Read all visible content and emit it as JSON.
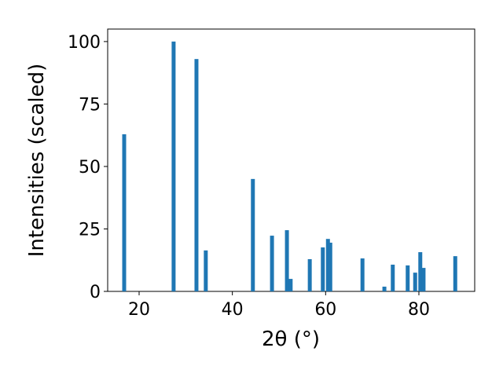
{
  "chart_data": {
    "type": "bar",
    "x_label": "2θ (°)",
    "y_label": "Intensities (scaled)",
    "x": [
      16.8,
      27.4,
      32.3,
      34.3,
      44.4,
      48.5,
      51.7,
      52.5,
      56.6,
      59.4,
      60.5,
      61.0,
      67.9,
      72.6,
      74.4,
      77.6,
      79.2,
      80.3,
      81.0,
      87.8
    ],
    "values": [
      62.9,
      100,
      93,
      16.4,
      45,
      22.3,
      24.5,
      5,
      12.9,
      17.6,
      21,
      19.5,
      13.2,
      1.9,
      10.7,
      10.4,
      7.5,
      15.7,
      9.4,
      14.1
    ],
    "color": "#1f77b4",
    "xlim": [
      13.26,
      91.97
    ],
    "ylim": [
      0,
      105
    ],
    "xticks": [
      20,
      40,
      60,
      80
    ],
    "yticks": [
      0,
      25,
      50,
      75,
      100
    ],
    "grid": false
  }
}
